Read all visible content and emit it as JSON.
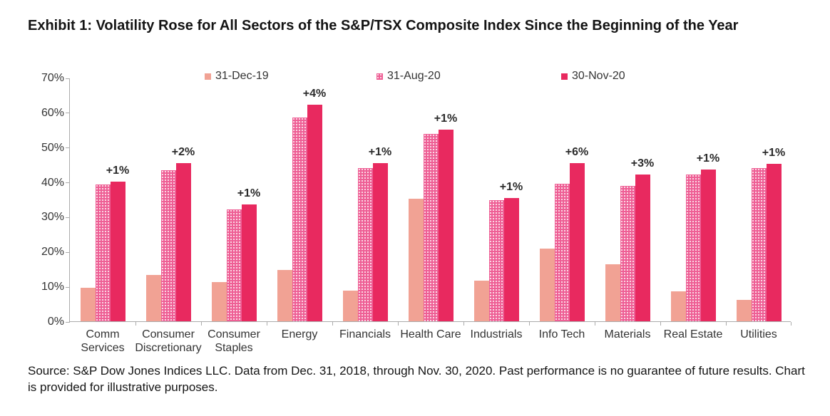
{
  "source_note": "Source: S&P Dow Jones Indices LLC. Data from Dec. 31, 2018, through Nov. 30, 2020. Past performance is no guarantee of future results. Chart is provided for illustrative purposes.",
  "chart_data": {
    "type": "bar",
    "title": "Exhibit 1: Volatility Rose for All Sectors of the S&P/TSX Composite Index Since the Beginning of the Year",
    "categories": [
      "Comm Services",
      "Consumer Discretionary",
      "Consumer Staples",
      "Energy",
      "Financials",
      "Health Care",
      "Industrials",
      "Info Tech",
      "Materials",
      "Real Estate",
      "Utilities"
    ],
    "series": [
      {
        "name": "31-Dec-19",
        "pattern": "solid",
        "color": "#F1A294",
        "values": [
          9.7,
          13.3,
          11.2,
          14.8,
          8.8,
          35.3,
          11.6,
          20.9,
          16.3,
          8.6,
          6.1
        ]
      },
      {
        "name": "31-Aug-20",
        "pattern": "dots",
        "color": "#EE5F95",
        "values": [
          39.3,
          43.3,
          32.2,
          58.6,
          44.1,
          53.9,
          34.7,
          39.6,
          38.9,
          42.1,
          44.1
        ]
      },
      {
        "name": "30-Nov-20",
        "pattern": "solid",
        "color": "#E8295F",
        "values": [
          40.2,
          45.4,
          33.5,
          62.3,
          45.5,
          55.1,
          35.4,
          45.5,
          42.1,
          43.5,
          45.2
        ]
      }
    ],
    "annotations": [
      "+1%",
      "+2%",
      "+1%",
      "+4%",
      "+1%",
      "+1%",
      "+1%",
      "+6%",
      "+3%",
      "+1%",
      "+1%"
    ],
    "xlabel": "",
    "ylabel": "",
    "ylim": [
      0,
      70
    ],
    "ytick_step": 10,
    "ytick_suffix": "%",
    "grid": false,
    "legend_position": "top"
  }
}
